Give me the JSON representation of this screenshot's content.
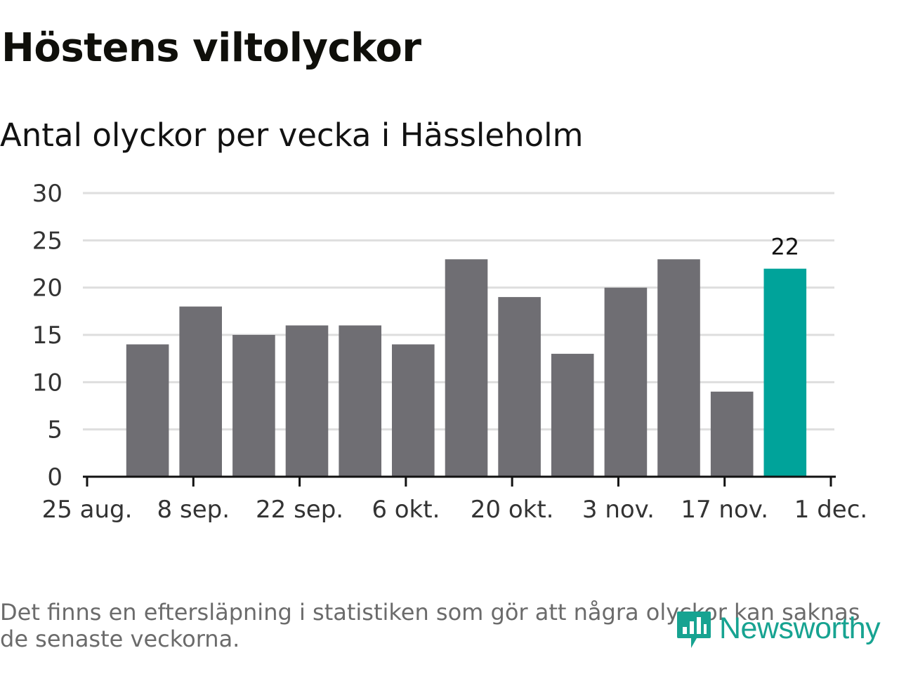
{
  "title": "Höstens viltolyckor",
  "subtitle": "Antal olyckor per vecka i Hässleholm",
  "footnote": "Det finns en eftersläpning i statistiken som gör att några olyckor kan saknas de senaste veckorna.",
  "logo": {
    "text": "Newsworthy",
    "icon": "newsworthy-logo-icon",
    "color": "#17a391"
  },
  "chart_data": {
    "type": "bar",
    "title": "Höstens viltolyckor",
    "subtitle": "Antal olyckor per vecka i Hässleholm",
    "xlabel": "",
    "ylabel": "",
    "ylim": [
      0,
      30
    ],
    "yticks": [
      0,
      5,
      10,
      15,
      20,
      25,
      30
    ],
    "x_axis_type": "date",
    "x_range": [
      "2024-08-25",
      "2024-12-01"
    ],
    "xticks": [
      {
        "date": "2024-08-25",
        "label": "25 aug."
      },
      {
        "date": "2024-09-08",
        "label": "8 sep."
      },
      {
        "date": "2024-09-22",
        "label": "22 sep."
      },
      {
        "date": "2024-10-06",
        "label": "6 okt."
      },
      {
        "date": "2024-10-20",
        "label": "20 okt."
      },
      {
        "date": "2024-11-03",
        "label": "3 nov."
      },
      {
        "date": "2024-11-17",
        "label": "17 nov."
      },
      {
        "date": "2024-12-01",
        "label": "1 dec."
      }
    ],
    "grid": true,
    "bars": [
      {
        "week_start": "2024-08-26",
        "value": 14
      },
      {
        "week_start": "2024-09-02",
        "value": 18
      },
      {
        "week_start": "2024-09-09",
        "value": 15
      },
      {
        "week_start": "2024-09-16",
        "value": 16
      },
      {
        "week_start": "2024-09-23",
        "value": 16
      },
      {
        "week_start": "2024-09-30",
        "value": 14
      },
      {
        "week_start": "2024-10-07",
        "value": 23
      },
      {
        "week_start": "2024-10-14",
        "value": 19
      },
      {
        "week_start": "2024-10-21",
        "value": 13
      },
      {
        "week_start": "2024-10-28",
        "value": 20
      },
      {
        "week_start": "2024-11-04",
        "value": 23
      },
      {
        "week_start": "2024-11-11",
        "value": 9
      },
      {
        "week_start": "2024-11-18",
        "value": 22
      }
    ],
    "highlight": {
      "week_start": "2024-11-18",
      "label": "22"
    },
    "colors": {
      "bar": "#6f6e73",
      "highlight": "#00a39a",
      "grid": "#dedede",
      "axis": "#121212"
    }
  }
}
